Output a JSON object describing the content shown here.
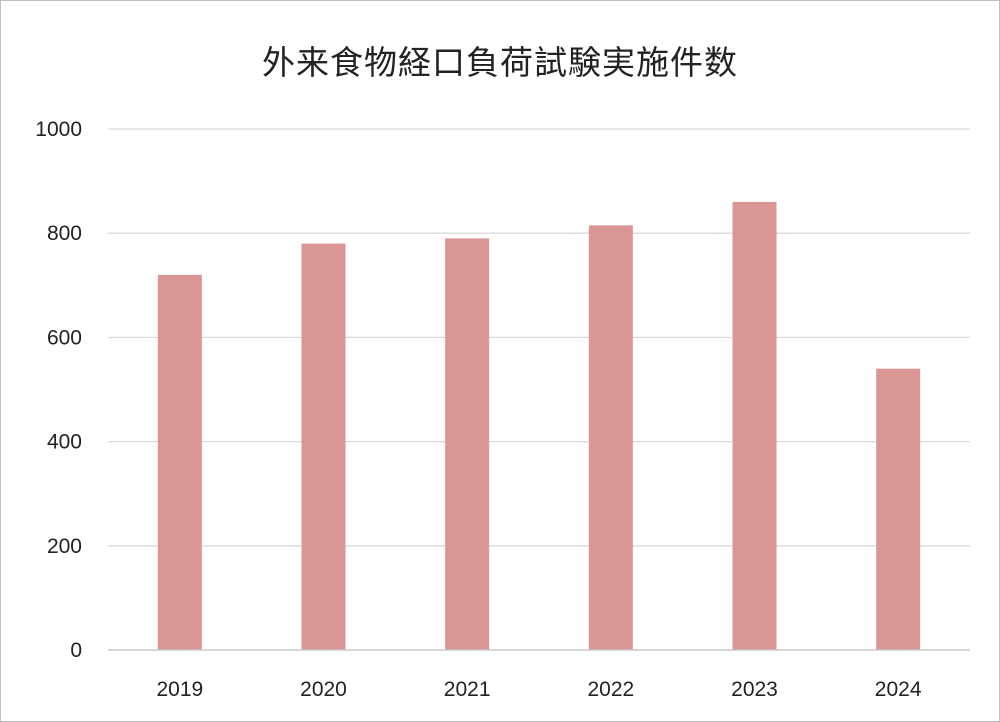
{
  "chart_data": {
    "type": "bar",
    "title": "外来食物経口負荷試験実施件数",
    "categories": [
      "2019",
      "2020",
      "2021",
      "2022",
      "2023",
      "2024"
    ],
    "series": [
      {
        "values": [
          720,
          780,
          790,
          815,
          860,
          540
        ],
        "color": "#da9694"
      }
    ],
    "ylim": [
      0,
      1000
    ],
    "yticks": [
      0,
      200,
      400,
      600,
      800,
      1000
    ],
    "grid": true,
    "gridline_color": "#d9d9d9",
    "legend": "none"
  }
}
